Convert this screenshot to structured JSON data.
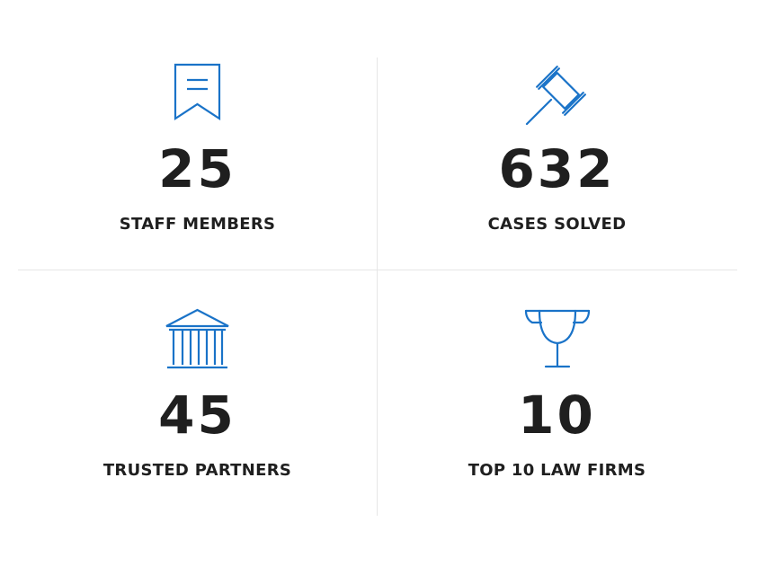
{
  "accent_color": "#1a73c8",
  "stats": [
    {
      "icon": "bookmark-icon",
      "number": "25",
      "label": "STAFF MEMBERS"
    },
    {
      "icon": "gavel-icon",
      "number": "632",
      "label": "CASES SOLVED"
    },
    {
      "icon": "courthouse-icon",
      "number": "45",
      "label": "TRUSTED PARTNERS"
    },
    {
      "icon": "trophy-icon",
      "number": "10",
      "label": "TOP 10 LAW FIRMS"
    }
  ]
}
